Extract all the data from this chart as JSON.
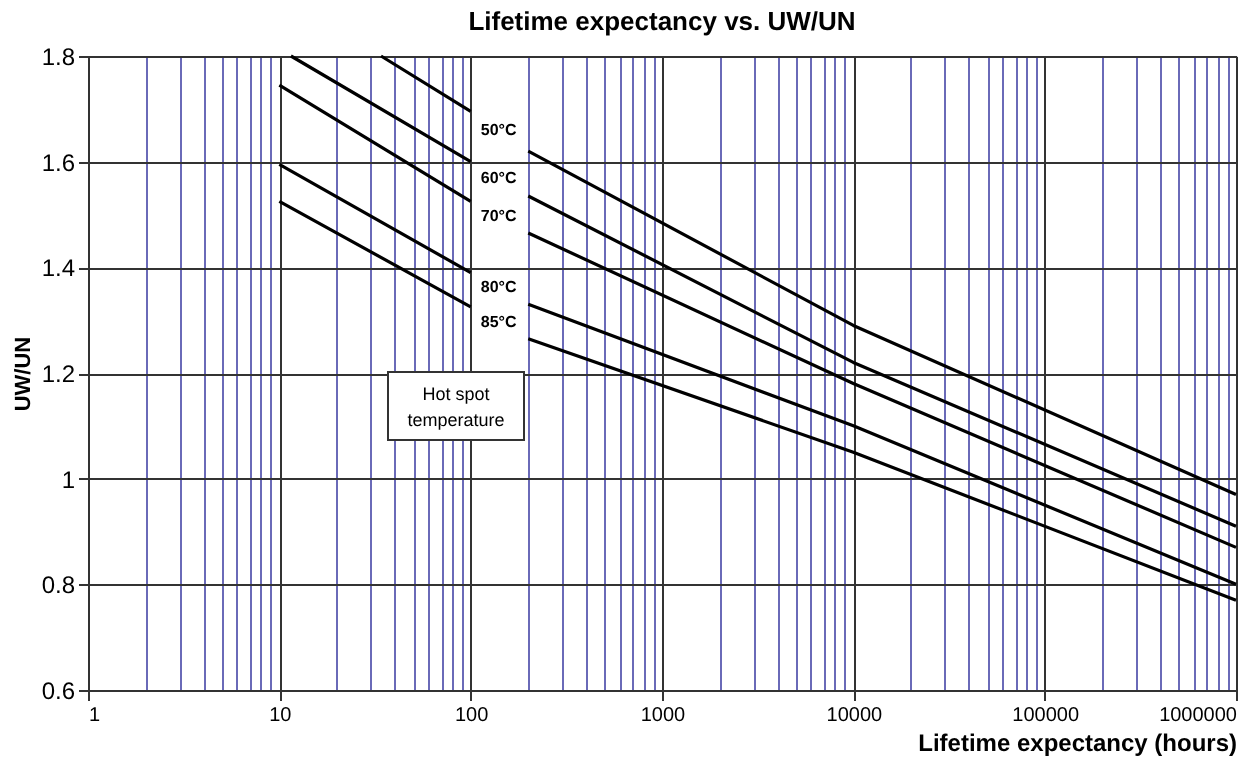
{
  "chart_data": {
    "type": "line",
    "title": "Lifetime expectancy vs. UW/UN",
    "xlabel": "Lifetime expectancy (hours)",
    "ylabel": "UW/UN",
    "legend_title": "Hot spot temperature",
    "log": "x",
    "xlim": [
      1,
      1000000
    ],
    "xticks": [
      1,
      {
        "value": 2,
        "label": null
      },
      {
        "value": 3,
        "label": null
      },
      {
        "value": 4,
        "label": null
      },
      {
        "value": 5,
        "label": null
      },
      {
        "value": 6,
        "label": null
      },
      {
        "value": 7,
        "label": null
      },
      {
        "value": 8,
        "label": null
      },
      {
        "value": 9,
        "label": null
      },
      10,
      {
        "value": 20,
        "label": null
      },
      {
        "value": 30,
        "label": null
      },
      {
        "value": 40,
        "label": null
      },
      {
        "value": 50,
        "label": null
      },
      {
        "value": 60,
        "label": null
      },
      {
        "value": 70,
        "label": null
      },
      {
        "value": 80,
        "label": null
      },
      {
        "value": 90,
        "label": null
      },
      100,
      {
        "value": 200,
        "label": null
      },
      {
        "value": 300,
        "label": null
      },
      {
        "value": 400,
        "label": null
      },
      {
        "value": 500,
        "label": null
      },
      {
        "value": 600,
        "label": null
      },
      {
        "value": 700,
        "label": null
      },
      {
        "value": 800,
        "label": null
      },
      {
        "value": 900,
        "label": null
      },
      1000,
      {
        "value": 2000,
        "label": null
      },
      {
        "value": 3000,
        "label": null
      },
      {
        "value": 4000,
        "label": null
      },
      {
        "value": 5000,
        "label": null
      },
      {
        "value": 6000,
        "label": null
      },
      {
        "value": 7000,
        "label": null
      },
      {
        "value": 8000,
        "label": null
      },
      {
        "value": 9000,
        "label": null
      },
      10000,
      {
        "value": 20000,
        "label": null
      },
      {
        "value": 30000,
        "label": null
      },
      {
        "value": 40000,
        "label": null
      },
      {
        "value": 50000,
        "label": null
      },
      {
        "value": 60000,
        "label": null
      },
      {
        "value": 70000,
        "label": null
      },
      {
        "value": 80000,
        "label": null
      },
      {
        "value": 90000,
        "label": null
      },
      100000,
      {
        "value": 200000,
        "label": null
      },
      {
        "value": 300000,
        "label": null
      },
      {
        "value": 400000,
        "label": null
      },
      {
        "value": 500000,
        "label": null
      },
      {
        "value": 600000,
        "label": null
      },
      {
        "value": 700000,
        "label": null
      },
      {
        "value": 800000,
        "label": null
      },
      {
        "value": 900000,
        "label": null
      },
      1000000
    ],
    "ylim": [
      0.6,
      1.8
    ],
    "yticks": [
      0.6,
      0.8,
      1,
      1.2,
      1.4,
      1.6,
      1.8
    ],
    "grid": true,
    "legend": false,
    "marker": "none",
    "line_style": "solid",
    "series": [
      {
        "name": "50°C",
        "color": "#000000",
        "x": [
          34,
          100,
          140,
          200,
          10000,
          1000000
        ],
        "values": [
          1.8,
          1.695,
          null,
          1.62,
          1.29,
          0.97
        ]
      },
      {
        "name": "60°C",
        "color": "#000000",
        "x": [
          11.5,
          100,
          140,
          200,
          10000,
          1000000
        ],
        "values": [
          1.8,
          1.6,
          null,
          1.535,
          1.22,
          0.91
        ]
      },
      {
        "name": "70°C",
        "color": "#000000",
        "x": [
          10,
          100,
          140,
          200,
          10000,
          1000000
        ],
        "values": [
          1.745,
          1.525,
          null,
          1.465,
          1.18,
          0.87
        ]
      },
      {
        "name": "80°C",
        "color": "#000000",
        "x": [
          10,
          100,
          140,
          200,
          10000,
          1000000
        ],
        "values": [
          1.595,
          1.39,
          null,
          1.33,
          1.1,
          0.8
        ]
      },
      {
        "name": "85°C",
        "color": "#000000",
        "x": [
          10,
          100,
          140,
          200,
          10000,
          1000000
        ],
        "values": [
          1.525,
          1.325,
          null,
          1.265,
          1.05,
          0.77
        ]
      }
    ]
  }
}
